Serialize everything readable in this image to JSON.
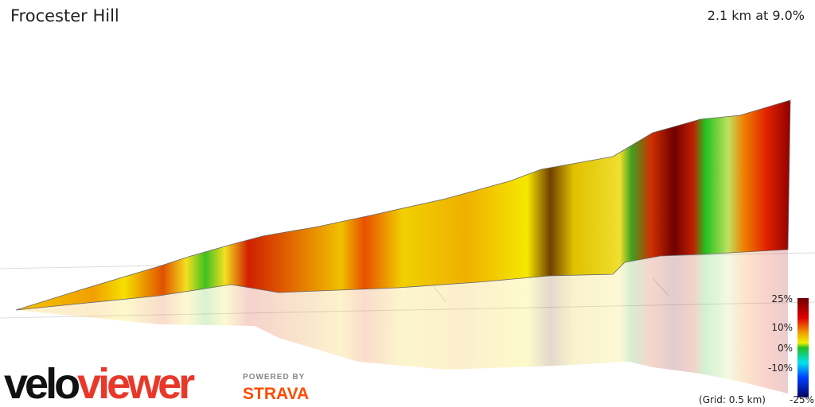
{
  "header": {
    "title": "Frocester Hill",
    "summary": "2.1 km at 9.0%"
  },
  "legend": {
    "labels": [
      "25%",
      "10%",
      "0%",
      "-10%",
      "-25%"
    ],
    "grid_note": "(Grid: 0.5 km)"
  },
  "branding": {
    "velo": "velo",
    "viewer": "viewer",
    "powered_by": "POWERED BY",
    "strava": "STRAVA"
  }
}
